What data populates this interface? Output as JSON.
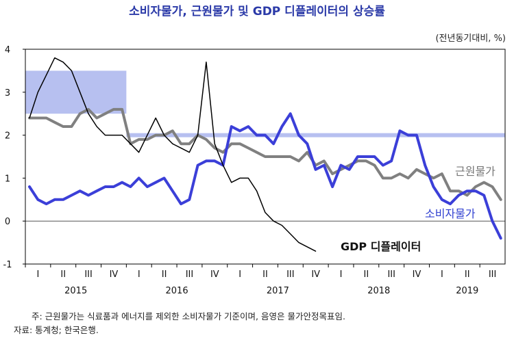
{
  "chart_data": {
    "type": "line",
    "title": "소비자물가, 근원물가 및 GDP 디플레이터의 상승률",
    "unit": "(전년동기대비, %)",
    "ylim": [
      -1,
      4
    ],
    "yticks": [
      "4",
      "3",
      "2",
      "1",
      "0",
      "-1"
    ],
    "quarter_labels": [
      "I",
      "II",
      "III",
      "IV",
      "I",
      "II",
      "III",
      "IV",
      "I",
      "II",
      "III",
      "IV",
      "I",
      "II",
      "III",
      "IV",
      "I",
      "II",
      "III"
    ],
    "years": [
      "2015",
      "2016",
      "2017",
      "2018",
      "2019"
    ],
    "target_band_2015": {
      "from": 2.5,
      "to": 3.5
    },
    "target_line_2016_onward": 2.0,
    "series": [
      {
        "name": "근원물가",
        "color": "#808080",
        "values": [
          2.4,
          2.4,
          2.4,
          2.3,
          2.2,
          2.2,
          2.5,
          2.6,
          2.4,
          2.5,
          2.6,
          2.6,
          1.8,
          1.9,
          1.9,
          2.0,
          2.0,
          2.1,
          1.8,
          1.8,
          2.0,
          1.9,
          1.7,
          1.6,
          1.8,
          1.8,
          1.7,
          1.6,
          1.5,
          1.5,
          1.5,
          1.5,
          1.4,
          1.6,
          1.3,
          1.4,
          1.1,
          1.2,
          1.3,
          1.4,
          1.4,
          1.3,
          1.0,
          1.0,
          1.1,
          1.0,
          1.2,
          1.1,
          1.0,
          1.1,
          0.7,
          0.7,
          0.6,
          0.8,
          0.9,
          0.8,
          0.5
        ]
      },
      {
        "name": "소비자물가",
        "color": "#3b3fd8",
        "values": [
          0.8,
          0.5,
          0.4,
          0.5,
          0.5,
          0.6,
          0.7,
          0.6,
          0.7,
          0.8,
          0.8,
          0.9,
          0.8,
          1.0,
          0.8,
          0.9,
          1.0,
          0.7,
          0.4,
          0.5,
          1.3,
          1.4,
          1.4,
          1.3,
          2.2,
          2.1,
          2.2,
          2.0,
          2.0,
          1.8,
          2.2,
          2.5,
          2.0,
          1.8,
          1.2,
          1.3,
          0.8,
          1.3,
          1.2,
          1.5,
          1.5,
          1.5,
          1.3,
          1.4,
          2.1,
          2.0,
          2.0,
          1.3,
          0.8,
          0.5,
          0.4,
          0.6,
          0.7,
          0.7,
          0.6,
          0.0,
          -0.4
        ]
      },
      {
        "name": "GDP 디플레이터",
        "color": "#000000",
        "values": [
          2.4,
          3.0,
          3.4,
          3.8,
          3.7,
          3.5,
          3.0,
          2.5,
          2.2,
          2.0,
          2.0,
          2.0,
          1.8,
          1.6,
          2.0,
          2.4,
          2.0,
          1.8,
          1.7,
          1.6,
          2.0,
          3.7,
          1.8,
          1.3,
          0.9,
          1.0,
          1.0,
          0.7,
          0.2,
          0.0,
          -0.1,
          -0.3,
          -0.5,
          -0.6,
          -0.7
        ]
      }
    ],
    "series_labels": {
      "core": "근원물가",
      "cpi": "소비자물가",
      "gdp": "GDP 디플레이터"
    }
  },
  "notes": {
    "line1": "주: 근원물가는 식료품과 에너지를 제외한 소비자물가 기준이며, 음영은 물가안정목표임.",
    "line2": "자료: 통계청; 한국은행."
  }
}
